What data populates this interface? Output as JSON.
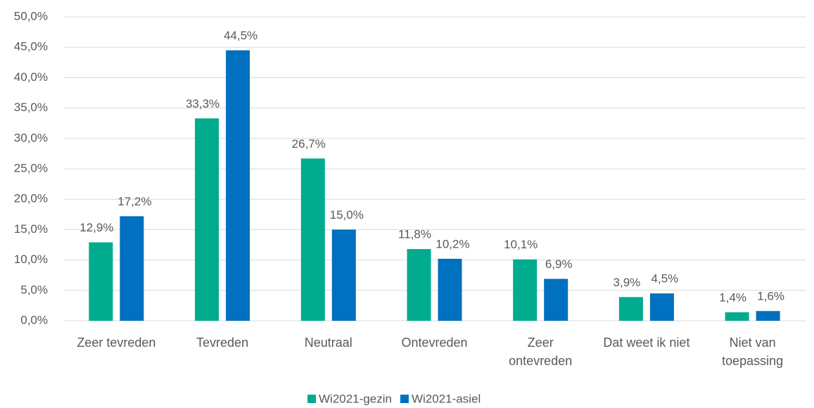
{
  "chart_data": {
    "type": "bar",
    "categories": [
      "Zeer tevreden",
      "Tevreden",
      "Neutraal",
      "Ontevreden",
      "Zeer ontevreden",
      "Dat weet ik niet",
      "Niet van toepassing"
    ],
    "series": [
      {
        "name": "Wi2021-gezin",
        "color": "#00ab8e",
        "values": [
          12.9,
          33.3,
          26.7,
          11.8,
          10.1,
          3.9,
          1.4
        ],
        "value_labels": [
          "12,9%",
          "33,3%",
          "26,7%",
          "11,8%",
          "10,1%",
          "3,9%",
          "1,4%"
        ]
      },
      {
        "name": "Wi2021-asiel",
        "color": "#0070c0",
        "values": [
          17.2,
          44.5,
          15.0,
          10.2,
          6.9,
          4.5,
          1.6
        ],
        "value_labels": [
          "17,2%",
          "44,5%",
          "15,0%",
          "10,2%",
          "6,9%",
          "4,5%",
          "1,6%"
        ]
      }
    ],
    "ylim": [
      0,
      50
    ],
    "yticks": [
      {
        "value": 0,
        "label": "0,0%"
      },
      {
        "value": 5,
        "label": "5,0%"
      },
      {
        "value": 10,
        "label": "10,0%"
      },
      {
        "value": 15,
        "label": "15,0%"
      },
      {
        "value": 20,
        "label": "20,0%"
      },
      {
        "value": 25,
        "label": "25,0%"
      },
      {
        "value": 30,
        "label": "30,0%"
      },
      {
        "value": 35,
        "label": "35,0%"
      },
      {
        "value": 40,
        "label": "40,0%"
      },
      {
        "value": 45,
        "label": "45,0%"
      },
      {
        "value": 50,
        "label": "50,0%"
      }
    ],
    "grid": true,
    "legend": "bottom"
  }
}
